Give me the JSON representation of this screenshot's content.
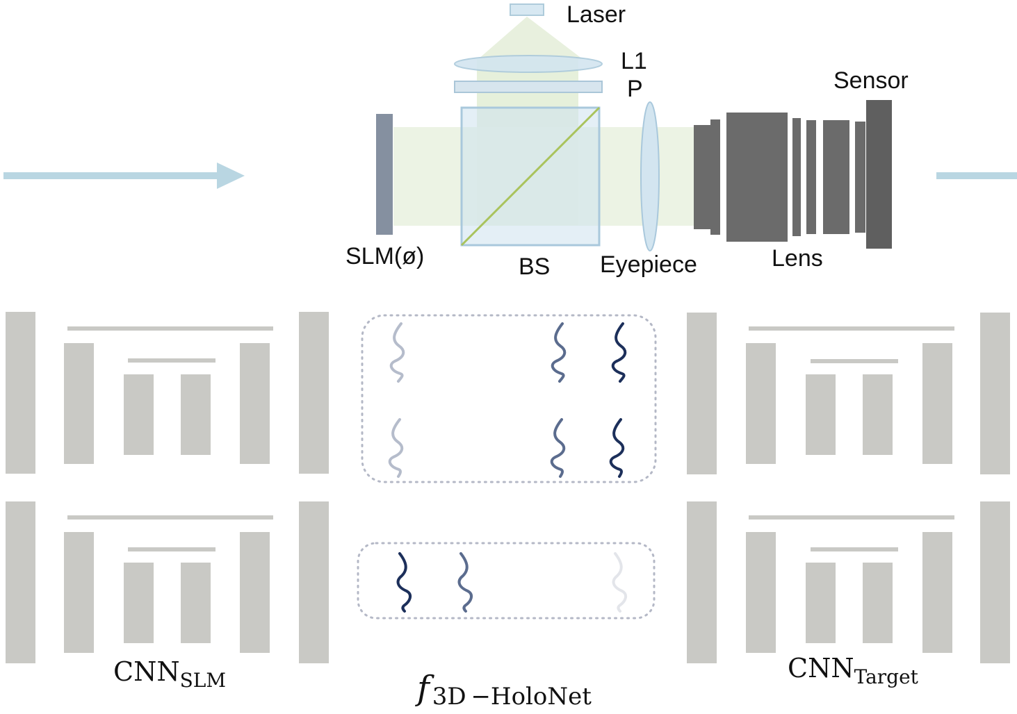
{
  "optics": {
    "laser": "Laser",
    "l1": "L1",
    "polarizer": "P",
    "slm": "SLM(ø)",
    "beamsplitter": "BS",
    "eyepiece": "Eyepiece",
    "lens": "Lens",
    "sensor": "Sensor"
  },
  "networks": {
    "cnn_slm": {
      "main": "CNN",
      "sub": "SLM"
    },
    "cnn_target": {
      "main": "CNN",
      "sub": "Target"
    },
    "model": {
      "main": "f",
      "sub": "3D −HoloNet"
    }
  },
  "colors": {
    "arrow": "#b9d6e2",
    "beam": "#e6f0dc",
    "optic_blue": "#cfe2ef",
    "slm_gray": "#8590a0",
    "camera_dark": "#6b6b6b",
    "unet_gray": "#c9c9c5",
    "wave_light": "#b5bccb",
    "wave_mid": "#5b6c8e",
    "wave_dark": "#1c2f5a",
    "wave_faint": "#e3e5ea"
  }
}
